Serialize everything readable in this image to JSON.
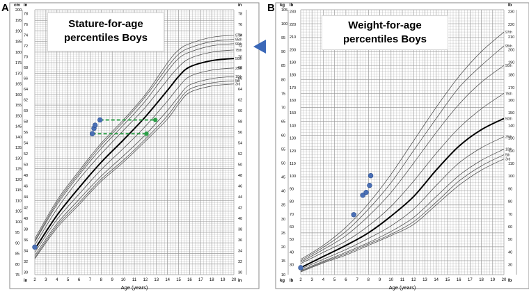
{
  "panels": {
    "a": {
      "letter": "A",
      "title_line1": "Stature-for-age",
      "title_line2": "percentiles Boys",
      "xlabel": "Age (years)",
      "unit_cm": "cm",
      "unit_in": "in"
    },
    "b": {
      "letter": "B",
      "title_line1": "Weight-for-age",
      "title_line2": "percentiles Boys",
      "xlabel": "Age (years)",
      "unit_kg": "kg",
      "unit_lb": "lb"
    }
  },
  "colors": {
    "marker": "#4a6fb5",
    "dashed": "#2e9e48",
    "arrow": "#3b68b8",
    "median": "#000000",
    "curve": "#555555",
    "grid": "#999999",
    "grid_major": "#555555"
  },
  "chart_data": [
    {
      "type": "line",
      "panel": "A",
      "title": "Stature-for-age percentiles Boys",
      "xlabel": "Age (years)",
      "ylabel_left": "cm",
      "ylabel_right": "in",
      "xlim": [
        2,
        20
      ],
      "ylim": [
        75,
        200
      ],
      "x_ticks": [
        2,
        3,
        4,
        5,
        6,
        7,
        8,
        9,
        10,
        11,
        12,
        13,
        14,
        15,
        16,
        17,
        18,
        19,
        20
      ],
      "y_ticks_cm": [
        75,
        80,
        85,
        90,
        95,
        100,
        105,
        110,
        115,
        120,
        125,
        130,
        135,
        140,
        145,
        150,
        155,
        160,
        165,
        170,
        175,
        180,
        185,
        190,
        195,
        200
      ],
      "y_ticks_in": [
        30,
        32,
        34,
        36,
        38,
        40,
        42,
        44,
        46,
        48,
        50,
        52,
        54,
        56,
        58,
        60,
        62,
        64,
        66,
        68,
        70,
        72,
        74,
        76,
        78
      ],
      "percentile_labels": [
        "97th",
        "95th",
        "90th",
        "75th",
        "50th",
        "25th",
        "10th",
        "5th",
        "3rd"
      ],
      "percentile_age": [
        2,
        4,
        6,
        8,
        10,
        12,
        14,
        15,
        16,
        18,
        20
      ],
      "series": [
        {
          "name": "97th",
          "values": [
            92,
            110,
            124,
            137,
            148,
            160,
            175,
            181,
            184,
            187,
            188
          ]
        },
        {
          "name": "95th",
          "values": [
            91,
            109,
            123,
            136,
            147,
            159,
            173,
            179,
            182,
            185,
            186
          ]
        },
        {
          "name": "90th",
          "values": [
            90.5,
            108,
            122,
            134.5,
            145.5,
            157,
            171,
            177,
            180,
            183,
            184
          ]
        },
        {
          "name": "75th",
          "values": [
            89,
            106,
            120,
            132,
            143,
            154,
            167,
            173,
            177,
            180,
            181
          ]
        },
        {
          "name": "50th",
          "values": [
            87,
            103,
            116,
            128,
            138.5,
            149.5,
            162,
            168.5,
            173,
            176,
            177
          ]
        },
        {
          "name": "25th",
          "values": [
            85.5,
            101,
            113,
            124.5,
            134.5,
            145,
            157,
            163.5,
            168.5,
            171.5,
            172.5
          ]
        },
        {
          "name": "10th",
          "values": [
            84,
            99,
            110.5,
            121.5,
            131,
            141,
            152.5,
            159,
            164.5,
            167.5,
            168.5
          ]
        },
        {
          "name": "5th",
          "values": [
            83,
            98,
            109,
            120,
            129,
            139,
            150,
            157,
            162.5,
            165.5,
            166.5
          ]
        },
        {
          "name": "3rd",
          "values": [
            82.5,
            97,
            108,
            119,
            128,
            138,
            148.5,
            155.5,
            161,
            164,
            165
          ]
        }
      ],
      "patient_points": [
        [
          2.0,
          88
        ],
        [
          7.2,
          141.5
        ],
        [
          7.35,
          144
        ],
        [
          7.45,
          145.5
        ],
        [
          7.9,
          148
        ]
      ],
      "dashed_lines": [
        {
          "from": [
            7.2,
            141.5
          ],
          "to": [
            12.1,
            141.5
          ]
        },
        {
          "from": [
            7.9,
            148
          ],
          "to": [
            12.9,
            148
          ]
        }
      ],
      "dashed_end_points": [
        [
          12.1,
          141.5
        ],
        [
          12.9,
          148
        ]
      ],
      "arrow_target_cm": 178
    },
    {
      "type": "line",
      "panel": "B",
      "title": "Weight-for-age percentiles Boys",
      "xlabel": "Age (years)",
      "ylabel_left": "kg",
      "ylabel_right": "lb",
      "xlim": [
        2,
        20
      ],
      "ylim": [
        10,
        105
      ],
      "x_ticks": [
        2,
        3,
        4,
        5,
        6,
        7,
        8,
        9,
        10,
        11,
        12,
        13,
        14,
        15,
        16,
        17,
        18,
        19,
        20
      ],
      "y_ticks_kg": [
        10,
        15,
        20,
        25,
        30,
        35,
        40,
        45,
        50,
        55,
        60,
        65,
        70,
        75,
        80,
        85,
        90,
        95,
        100,
        105
      ],
      "y_ticks_lb": [
        30,
        40,
        50,
        60,
        70,
        80,
        90,
        100,
        110,
        120,
        130,
        140,
        150,
        160,
        170,
        180,
        190,
        200,
        210,
        220,
        230
      ],
      "percentile_labels": [
        "97th",
        "95th",
        "90th",
        "75th",
        "50th",
        "25th",
        "10th",
        "5th",
        "3rd"
      ],
      "percentile_age": [
        2,
        4,
        6,
        8,
        10,
        12,
        14,
        16,
        18,
        20
      ],
      "series": [
        {
          "name": "97th",
          "values": [
            15.5,
            20.5,
            27,
            35.5,
            46,
            58,
            70,
            81,
            90,
            97
          ]
        },
        {
          "name": "95th",
          "values": [
            15,
            19.8,
            25.5,
            33.5,
            43,
            54.5,
            66,
            77,
            85,
            92
          ]
        },
        {
          "name": "90th",
          "values": [
            14.5,
            19,
            24,
            31,
            39.5,
            50,
            61,
            71,
            79,
            85
          ]
        },
        {
          "name": "75th",
          "values": [
            14,
            18,
            22,
            27.5,
            34.5,
            43.5,
            53.5,
            62.5,
            69.5,
            75
          ]
        },
        {
          "name": "50th",
          "values": [
            12.5,
            16.5,
            20.5,
            25,
            31,
            38,
            47.5,
            56,
            62,
            66
          ]
        },
        {
          "name": "25th",
          "values": [
            12,
            15.5,
            19,
            23,
            27.5,
            33.5,
            42,
            50,
            55.5,
            59.5
          ]
        },
        {
          "name": "10th",
          "values": [
            11.5,
            14.8,
            18,
            21.5,
            25.5,
            30.5,
            38,
            45.5,
            51,
            55
          ]
        },
        {
          "name": "5th",
          "values": [
            11.2,
            14.5,
            17.5,
            21,
            24.5,
            29,
            36,
            43.5,
            49,
            53
          ]
        },
        {
          "name": "3rd",
          "values": [
            11,
            14.2,
            17,
            20.5,
            24,
            28,
            35,
            42,
            47.5,
            51.5
          ]
        }
      ],
      "patient_points": [
        [
          2.0,
          12.5
        ],
        [
          6.7,
          31.5
        ],
        [
          7.5,
          38.5
        ],
        [
          7.8,
          39.5
        ],
        [
          8.1,
          42
        ],
        [
          8.2,
          45.5
        ]
      ]
    }
  ]
}
